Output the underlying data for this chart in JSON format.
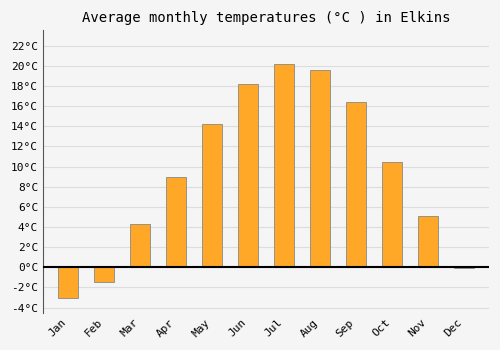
{
  "title": "Average monthly temperatures (°C ) in Elkins",
  "months": [
    "Jan",
    "Feb",
    "Mar",
    "Apr",
    "May",
    "Jun",
    "Jul",
    "Aug",
    "Sep",
    "Oct",
    "Nov",
    "Dec"
  ],
  "values": [
    -3.0,
    -1.5,
    4.3,
    9.0,
    14.2,
    18.2,
    20.2,
    19.6,
    16.4,
    10.4,
    5.1,
    -0.1
  ],
  "bar_color": "#FFA726",
  "bar_edge_color": "#888888",
  "background_color": "#f5f5f5",
  "grid_color": "#dddddd",
  "ytick_labels": [
    "-4°C",
    "-2°C",
    "0°C",
    "2°C",
    "4°C",
    "6°C",
    "8°C",
    "10°C",
    "12°C",
    "14°C",
    "16°C",
    "18°C",
    "20°C",
    "22°C"
  ],
  "ytick_values": [
    -4,
    -2,
    0,
    2,
    4,
    6,
    8,
    10,
    12,
    14,
    16,
    18,
    20,
    22
  ],
  "ylim": [
    -4.5,
    23.5
  ],
  "zero_line_color": "#000000",
  "title_fontsize": 10,
  "tick_fontsize": 8,
  "bar_width": 0.55
}
